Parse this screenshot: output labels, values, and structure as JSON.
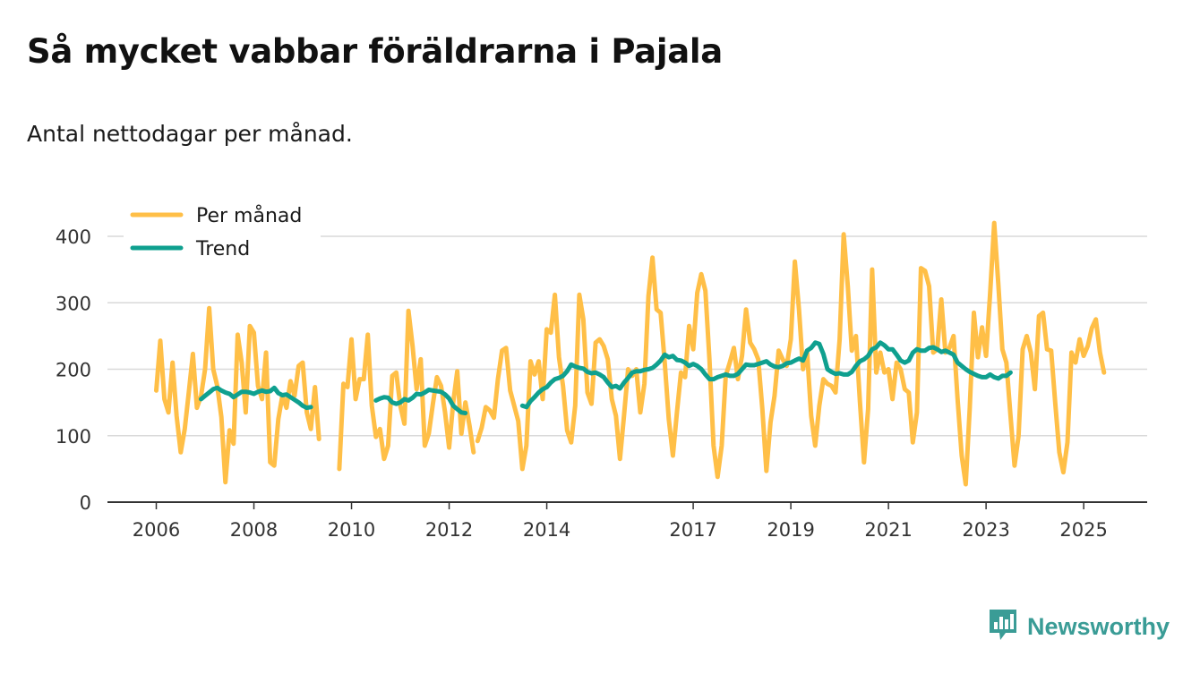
{
  "header": {
    "title": "Så mycket vabbar föräldrarna i Pajala",
    "subtitle": "Antal nettodagar per månad."
  },
  "brand": {
    "name": "Newsworthy"
  },
  "colors": {
    "monthly": "#ffbf47",
    "trend": "#0fa08f",
    "grid": "#d9d9d9",
    "axis": "#333333",
    "brand": "#3a9c96"
  },
  "chart_data": {
    "type": "line",
    "title": "Så mycket vabbar föräldrarna i Pajala",
    "subtitle": "Antal nettodagar per månad.",
    "xlabel": "",
    "ylabel": "",
    "ylim": [
      0,
      400
    ],
    "xlim": [
      2005,
      2026.3
    ],
    "yticks": [
      0,
      100,
      200,
      300,
      400
    ],
    "xticks": [
      2006,
      2008,
      2010,
      2012,
      2014,
      2017,
      2019,
      2021,
      2023,
      2025
    ],
    "grid": true,
    "legend": {
      "placement": "top-left",
      "entries": [
        "Per månad",
        "Trend"
      ]
    },
    "series": [
      {
        "name": "Per månad",
        "segments": [
          {
            "start": 2006.0,
            "step": 0.083333,
            "values": [
              168,
              243,
              155,
              135,
              210,
              130,
              75,
              110,
              165,
              223,
              142,
              160,
              200,
              292,
              200,
              175,
              128,
              30,
              108,
              88,
              252,
              210,
              135,
              265,
              255,
              175,
              155,
              225,
              60,
              55,
              125,
              160,
              142,
              182,
              160,
              205,
              210,
              135,
              110,
              173,
              95
            ]
          },
          {
            "start": 2009.75,
            "step": 0.083333,
            "values": [
              50,
              178,
              173,
              245,
              155,
              185,
              185,
              252,
              145,
              98,
              110,
              65,
              85,
              190,
              195,
              145,
              118,
              288,
              235,
              170,
              215,
              85,
              103,
              148,
              188,
              175,
              135,
              82,
              150,
              197,
              103,
              150,
              115,
              75
            ]
          },
          {
            "start": 2012.583,
            "step": 0.083333,
            "values": [
              92,
              112,
              143,
              138,
              127,
              185,
              228,
              232,
              168,
              145,
              122,
              50,
              85,
              212,
              192,
              212,
              155,
              260,
              255,
              312,
              218,
              175,
              108,
              90,
              145,
              312,
              275,
              165,
              148,
              240,
              245,
              235,
              215,
              155,
              130,
              65,
              130,
              200,
              190,
              200,
              135,
              178,
              310,
              368,
              290,
              285,
              210,
              125,
              70,
              135,
              195,
              188,
              265,
              230,
              315,
              343,
              318,
              215,
              85,
              38,
              85,
              190,
              210,
              232,
              185,
              220,
              290,
              240,
              230,
              215,
              140,
              47,
              120,
              160,
              228,
              215,
              205,
              245,
              362,
              290,
              200,
              228,
              130,
              85,
              145,
              185,
              178,
              175,
              165,
              245,
              403,
              325,
              228,
              250,
              150,
              60,
              140,
              350,
              195,
              225,
              195,
              200,
              155,
              210,
              200,
              170,
              165,
              90,
              135,
              352,
              348,
              325,
              225,
              230,
              305,
              225,
              232,
              250,
              155,
              70,
              27,
              142,
              285,
              218,
              263,
              220,
              313,
              420,
              330,
              230,
              210,
              130,
              55,
              100,
              230,
              250,
              225,
              170,
              280,
              285,
              230,
              228,
              150,
              75,
              45,
              90,
              225,
              210,
              245,
              220,
              235,
              262,
              275,
              225,
              195
            ]
          }
        ]
      },
      {
        "name": "Trend",
        "segments": [
          {
            "start": 2006.917,
            "step": 0.083333,
            "values": [
              155,
              160,
              165,
              170,
              172,
              168,
              165,
              163,
              158,
              162,
              166,
              166,
              165,
              163,
              166,
              168,
              166,
              167,
              172,
              164,
              161,
              162,
              158,
              154,
              150,
              145,
              142,
              143
            ]
          },
          {
            "start": 2010.5,
            "step": 0.083333,
            "values": [
              153,
              156,
              158,
              157,
              150,
              148,
              150,
              155,
              153,
              157,
              163,
              162,
              165,
              169,
              168,
              167,
              166,
              162,
              156,
              145,
              140,
              135,
              134
            ]
          },
          {
            "start": 2013.5,
            "step": 0.083333,
            "values": [
              145,
              143,
              152,
              158,
              165,
              170,
              173,
              180,
              185,
              187,
              190,
              197,
              207,
              204,
              202,
              201,
              196,
              194,
              195,
              192,
              188,
              180,
              173,
              175,
              171,
              180,
              187,
              195,
              197,
              197,
              199,
              200,
              202,
              207,
              213,
              222,
              218,
              220,
              214,
              213,
              210,
              205,
              208,
              205,
              200,
              192,
              185,
              185,
              188,
              190,
              192,
              190,
              190,
              193,
              200,
              207,
              206,
              206,
              208,
              210,
              212,
              207,
              204,
              203,
              205,
              209,
              210,
              213,
              216,
              213,
              228,
              232,
              240,
              238,
              223,
              200,
              196,
              193,
              194,
              192,
              192,
              196,
              205,
              212,
              215,
              220,
              230,
              233,
              240,
              236,
              230,
              230,
              222,
              213,
              210,
              213,
              225,
              230,
              228,
              228,
              232,
              233,
              230,
              226,
              228,
              225,
              222,
              210,
              205,
              200,
              196,
              193,
              190,
              188,
              188,
              192,
              188,
              186,
              190,
              190,
              195
            ]
          }
        ]
      }
    ]
  }
}
